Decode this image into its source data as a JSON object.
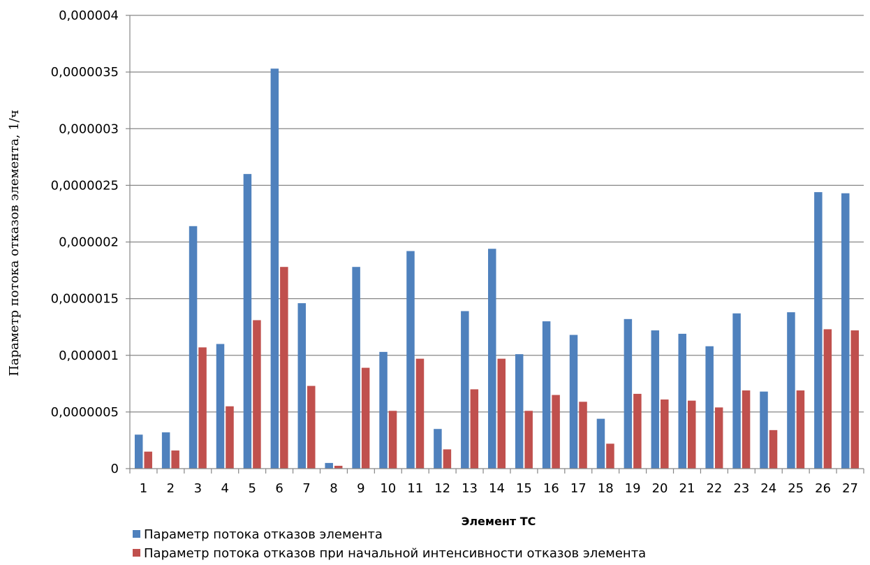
{
  "chart_data": {
    "type": "bar",
    "xlabel": "Элемент ТС",
    "ylabel": "Параметр потока отказов элемента, 1/ч",
    "ylim": [
      0,
      4e-06
    ],
    "yticks": [
      0,
      5e-07,
      1e-06,
      1.5e-06,
      2e-06,
      2.5e-06,
      3e-06,
      3.5e-06,
      4e-06
    ],
    "ytick_labels": [
      "0",
      "0,0000005",
      "0,000001",
      "0,0000015",
      "0,000002",
      "0,0000025",
      "0,000003",
      "0,0000035",
      "0,000004"
    ],
    "grid": true,
    "legend_position": "bottom-left",
    "categories": [
      "1",
      "2",
      "3",
      "4",
      "5",
      "6",
      "7",
      "8",
      "9",
      "10",
      "11",
      "12",
      "13",
      "14",
      "15",
      "16",
      "17",
      "18",
      "19",
      "20",
      "21",
      "22",
      "23",
      "24",
      "25",
      "26",
      "27"
    ],
    "series": [
      {
        "name": "Параметр потока отказов элемента",
        "color": "#4F81BD",
        "values": [
          3e-07,
          3.2e-07,
          2.14e-06,
          1.1e-06,
          2.6e-06,
          3.53e-06,
          1.46e-06,
          5e-08,
          1.78e-06,
          1.03e-06,
          1.92e-06,
          3.5e-07,
          1.39e-06,
          1.94e-06,
          1.01e-06,
          1.3e-06,
          1.18e-06,
          4.4e-07,
          1.32e-06,
          1.22e-06,
          1.19e-06,
          1.08e-06,
          1.37e-06,
          6.8e-07,
          1.38e-06,
          2.44e-06,
          2.43e-06
        ]
      },
      {
        "name": "Параметр потока отказов при начальной интенсивности отказов элемента",
        "color": "#C0504D",
        "values": [
          1.5e-07,
          1.6e-07,
          1.07e-06,
          5.5e-07,
          1.31e-06,
          1.78e-06,
          7.3e-07,
          2.5e-08,
          8.9e-07,
          5.1e-07,
          9.7e-07,
          1.7e-07,
          7e-07,
          9.7e-07,
          5.1e-07,
          6.5e-07,
          5.9e-07,
          2.2e-07,
          6.6e-07,
          6.1e-07,
          6e-07,
          5.4e-07,
          6.9e-07,
          3.4e-07,
          6.9e-07,
          1.23e-06,
          1.22e-06
        ]
      }
    ]
  }
}
